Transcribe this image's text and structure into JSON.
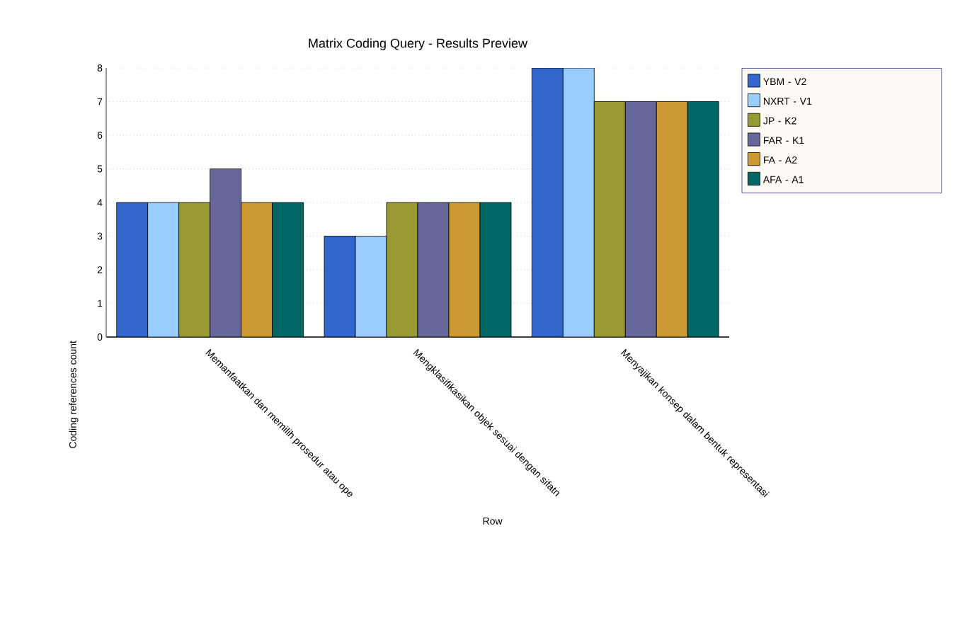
{
  "chart_data": {
    "type": "bar",
    "title": "Matrix Coding Query - Results Preview",
    "xlabel": "Row",
    "ylabel": "Coding references count",
    "categories": [
      "Memanfaatkan dan memilih prosedur atau ope",
      "Mengklasifikasikan objek sesuai dengan sifatn",
      "Menyajikan konsep dalam bentuk representasi"
    ],
    "series": [
      {
        "name": "YBM - V2",
        "color": "#3366cc",
        "values": [
          4,
          3,
          8
        ]
      },
      {
        "name": "NXRT - V1",
        "color": "#99ccff",
        "values": [
          4,
          3,
          8
        ]
      },
      {
        "name": "JP - K2",
        "color": "#999933",
        "values": [
          4,
          4,
          7
        ]
      },
      {
        "name": "FAR - K1",
        "color": "#666699",
        "values": [
          5,
          4,
          7
        ]
      },
      {
        "name": "FA - A2",
        "color": "#cc9933",
        "values": [
          4,
          4,
          7
        ]
      },
      {
        "name": "AFA - A1",
        "color": "#006666",
        "values": [
          4,
          4,
          7
        ]
      }
    ],
    "ylim": [
      0,
      8
    ],
    "yticks": [
      0,
      1,
      2,
      3,
      4,
      5,
      6,
      7,
      8
    ],
    "grid": "y",
    "legend": "top right"
  }
}
